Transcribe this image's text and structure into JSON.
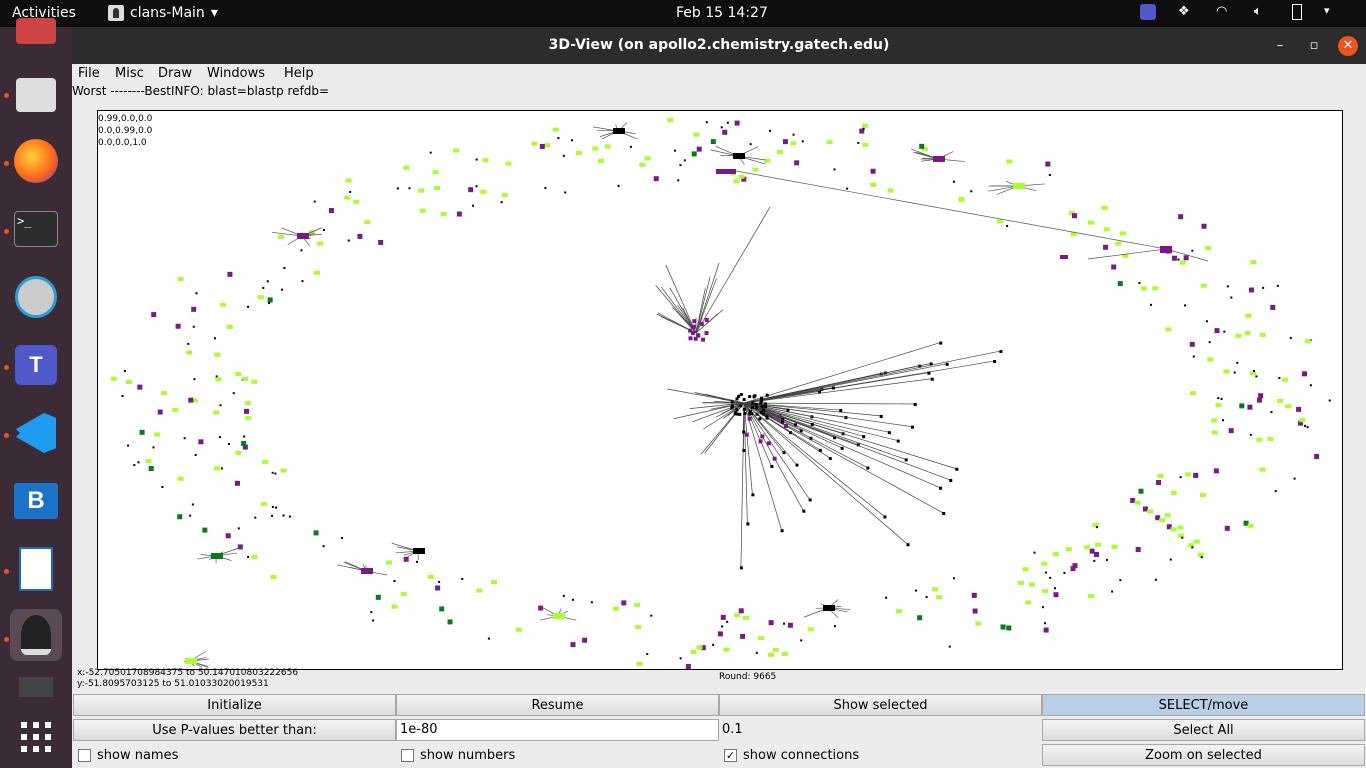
{
  "topbar": {
    "activities": "Activities",
    "app_name": "clans-Main",
    "clock": "Feb 15  14:27"
  },
  "window": {
    "title": "3D-View (on apollo2.chemistry.gatech.edu)"
  },
  "menu": [
    "File",
    "Misc",
    "Draw",
    "Windows",
    "Help"
  ],
  "info_line": "Worst  --------BestINFO: blast=blastp  refdb=",
  "canvas": {
    "rgb_lines": [
      "0.99,0.0,0.0",
      "0.0,0.99,0.0",
      "0.0,0.0,1.0"
    ]
  },
  "status": {
    "x_range": "x:-52.70501708984375 to 50.147010803222656",
    "y_range": "y:-51.8095703125 to 51.01033020019531",
    "round": "Round: 9665"
  },
  "controls": {
    "initialize": "Initialize",
    "resume": "Resume",
    "show_selected": "Show selected",
    "select_move": "SELECT/move",
    "use_pvalues": "Use P-values better than:",
    "pvalue_input": "1e-80",
    "pvalue_value": "0.1",
    "select_all": "Select All",
    "show_names": "show names",
    "show_numbers": "show numbers",
    "show_connections": "show connections",
    "zoom_selected": "Zoom on selected",
    "show_connections_checked": true
  },
  "colors": {
    "lime": "#a9ff2e",
    "purple": "#7a1a86",
    "dark_green": "#0a7a1a"
  }
}
